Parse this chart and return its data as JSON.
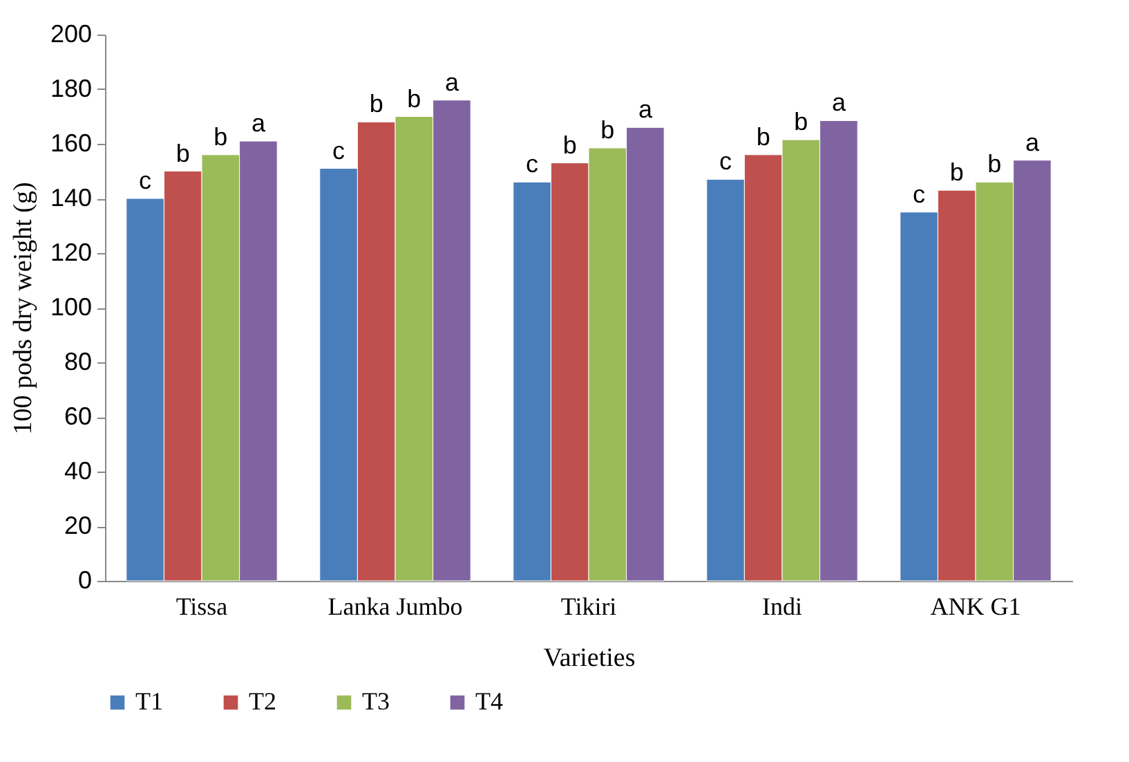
{
  "chart_data": {
    "type": "bar",
    "xlabel": "Varieties",
    "ylabel": "100 pods dry weight (g)",
    "categories": [
      "Tissa",
      "Lanka Jumbo",
      "Tikiri",
      "Indi",
      "ANK G1"
    ],
    "series": [
      {
        "name": "T1",
        "color": "#4a7ebb",
        "values": [
          140,
          151,
          146,
          147,
          135
        ],
        "value_labels": [
          "c",
          "c",
          "c",
          "c",
          "c"
        ]
      },
      {
        "name": "T2",
        "color": "#c0504d",
        "values": [
          150,
          168,
          153,
          156,
          143
        ],
        "value_labels": [
          "b",
          "b",
          "b",
          "b",
          "b"
        ]
      },
      {
        "name": "T3",
        "color": "#9bbb59",
        "values": [
          156,
          170,
          158.5,
          161.5,
          146
        ],
        "value_labels": [
          "b",
          "b",
          "b",
          "b",
          "b"
        ]
      },
      {
        "name": "T4",
        "color": "#8064a2",
        "values": [
          161,
          176,
          166,
          168.5,
          154
        ],
        "value_labels": [
          "a",
          "a",
          "a",
          "a",
          "a"
        ]
      }
    ],
    "ylim": [
      0,
      200
    ],
    "yticks": [
      0,
      20,
      40,
      60,
      80,
      100,
      120,
      140,
      160,
      180,
      200
    ],
    "grid": false,
    "legend": "bottom"
  }
}
